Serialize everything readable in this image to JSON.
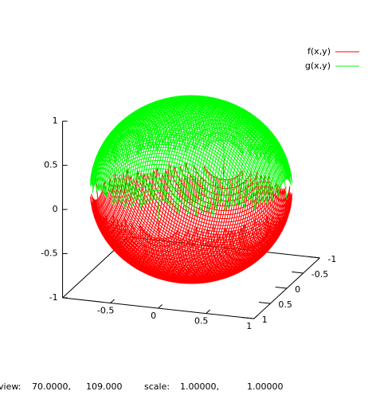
{
  "chart_data": {
    "type": "surface3d",
    "series": [
      {
        "name": "f(x,y)",
        "color": "#ff0000",
        "zrange": [
          -1,
          0
        ]
      },
      {
        "name": "g(x,y)",
        "color": "#00ff00",
        "zrange": [
          0,
          1
        ]
      }
    ],
    "xlim": [
      -1,
      1
    ],
    "ylim": [
      -1,
      1
    ],
    "zlim": [
      -1,
      1
    ],
    "xticks": [
      -0.5,
      0,
      0.5,
      1
    ],
    "yticks": [
      -1,
      -0.5,
      0,
      0.5,
      1
    ],
    "zticks": [
      -1,
      -0.5,
      0,
      0.5,
      1
    ],
    "legend": "top-right",
    "status": {
      "view_label": "view:",
      "view": [
        {
          "value": 70,
          "label": "70.0000,"
        },
        {
          "value": 109,
          "label": "109.000"
        }
      ],
      "scale_label": "scale:",
      "scale": [
        {
          "value": 1,
          "label": "1.00000,"
        },
        {
          "value": 1,
          "label": "1.00000"
        }
      ]
    }
  }
}
